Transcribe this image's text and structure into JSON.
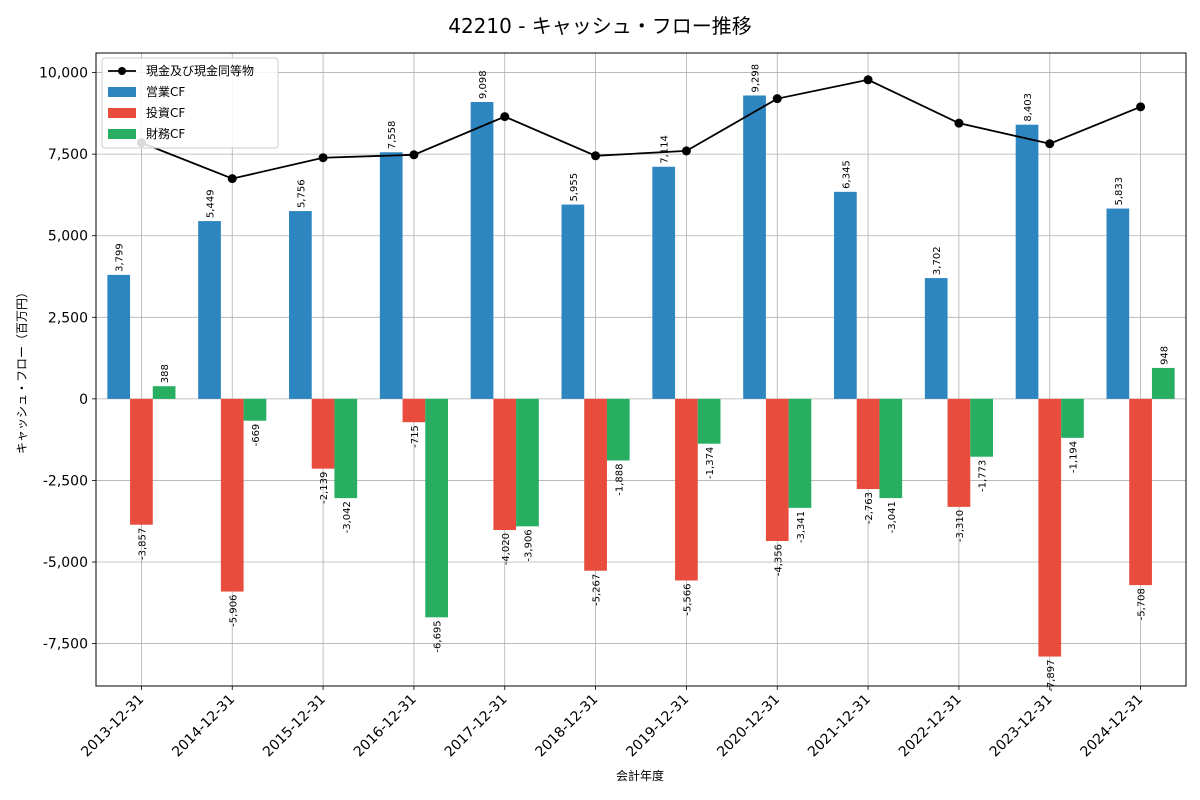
{
  "chart_data": {
    "type": "bar",
    "title": "42210 - キャッシュ・フロー推移",
    "xlabel": "会計年度",
    "ylabel": "キャッシュ・フロー（百万円）",
    "ylim": [
      -8800,
      10600
    ],
    "yticks": [
      -7500,
      -5000,
      -2500,
      0,
      2500,
      5000,
      7500,
      10000
    ],
    "ytick_labels": [
      "-7,500",
      "-5,000",
      "-2,500",
      "0",
      "2,500",
      "5,000",
      "7,500",
      "10,000"
    ],
    "grid": true,
    "legend_position": "top-left",
    "categories": [
      "2013-12-31",
      "2014-12-31",
      "2015-12-31",
      "2016-12-31",
      "2017-12-31",
      "2018-12-31",
      "2019-12-31",
      "2020-12-31",
      "2021-12-31",
      "2022-12-31",
      "2023-12-31",
      "2024-12-31"
    ],
    "series": [
      {
        "name": "営業CF",
        "kind": "bar",
        "color": "#2e86c1",
        "values": [
          3799,
          5449,
          5756,
          7558,
          9098,
          5955,
          7114,
          9298,
          6345,
          3702,
          8403,
          5833
        ],
        "labels": [
          "3,799",
          "5,449",
          "5,756",
          "7,558",
          "9,098",
          "5,955",
          "7,114",
          "9,298",
          "6,345",
          "3,702",
          "8,403",
          "5,833"
        ]
      },
      {
        "name": "投資CF",
        "kind": "bar",
        "color": "#e74c3c",
        "values": [
          -3857,
          -5906,
          -2139,
          -715,
          -4020,
          -5267,
          -5566,
          -4356,
          -2763,
          -3310,
          -7897,
          -5708
        ],
        "labels": [
          "-3,857",
          "-5,906",
          "-2,139",
          "-715",
          "-4,020",
          "-5,267",
          "-5,566",
          "-4,356",
          "-2,763",
          "-3,310",
          "-7,897",
          "-5,708"
        ]
      },
      {
        "name": "財務CF",
        "kind": "bar",
        "color": "#27ae60",
        "values": [
          388,
          -669,
          -3042,
          -6695,
          -3906,
          -1888,
          -1374,
          -3341,
          -3041,
          -1773,
          -1194,
          948
        ],
        "labels": [
          "388",
          "-669",
          "-3,042",
          "-6,695",
          "-3,906",
          "-1,888",
          "-1,374",
          "-3,341",
          "-3,041",
          "-1,773",
          "-1,194",
          "948"
        ]
      },
      {
        "name": "現金及び現金同等物",
        "kind": "line",
        "color": "#000000",
        "values": [
          7850,
          6750,
          7390,
          7480,
          8650,
          7450,
          7600,
          9200,
          9780,
          8450,
          7820,
          8950
        ]
      }
    ]
  }
}
